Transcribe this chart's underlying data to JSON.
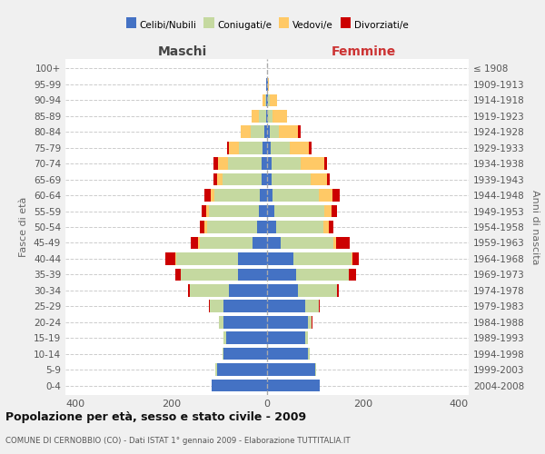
{
  "age_groups": [
    "0-4",
    "5-9",
    "10-14",
    "15-19",
    "20-24",
    "25-29",
    "30-34",
    "35-39",
    "40-44",
    "45-49",
    "50-54",
    "55-59",
    "60-64",
    "65-69",
    "70-74",
    "75-79",
    "80-84",
    "85-89",
    "90-94",
    "95-99",
    "100+"
  ],
  "birth_years": [
    "2004-2008",
    "1999-2003",
    "1994-1998",
    "1989-1993",
    "1984-1988",
    "1979-1983",
    "1974-1978",
    "1969-1973",
    "1964-1968",
    "1959-1963",
    "1954-1958",
    "1949-1953",
    "1944-1948",
    "1939-1943",
    "1934-1938",
    "1929-1933",
    "1924-1928",
    "1919-1923",
    "1914-1918",
    "1909-1913",
    "≤ 1908"
  ],
  "male": {
    "celibi": [
      115,
      105,
      90,
      85,
      90,
      90,
      80,
      60,
      60,
      30,
      20,
      17,
      15,
      12,
      12,
      9,
      5,
      2,
      1,
      1,
      0
    ],
    "coniugati": [
      0,
      2,
      3,
      5,
      10,
      30,
      80,
      120,
      130,
      110,
      105,
      105,
      95,
      80,
      70,
      50,
      30,
      15,
      3,
      0,
      0
    ],
    "vedovi": [
      0,
      0,
      0,
      0,
      0,
      0,
      0,
      0,
      2,
      3,
      5,
      5,
      8,
      12,
      20,
      20,
      20,
      15,
      5,
      1,
      0
    ],
    "divorziati": [
      0,
      0,
      0,
      0,
      1,
      2,
      5,
      12,
      20,
      15,
      10,
      10,
      12,
      8,
      10,
      5,
      0,
      0,
      0,
      0,
      0
    ]
  },
  "female": {
    "nubili": [
      110,
      100,
      85,
      80,
      85,
      80,
      65,
      60,
      55,
      28,
      18,
      15,
      12,
      10,
      10,
      7,
      5,
      2,
      2,
      1,
      0
    ],
    "coniugate": [
      0,
      2,
      3,
      5,
      8,
      28,
      80,
      110,
      120,
      110,
      100,
      105,
      95,
      80,
      60,
      40,
      20,
      10,
      3,
      0,
      0
    ],
    "vedove": [
      0,
      0,
      0,
      0,
      0,
      0,
      0,
      0,
      2,
      5,
      10,
      15,
      30,
      35,
      50,
      40,
      40,
      30,
      15,
      2,
      0
    ],
    "divorziate": [
      0,
      0,
      0,
      0,
      2,
      2,
      5,
      15,
      15,
      30,
      10,
      10,
      15,
      5,
      5,
      5,
      5,
      0,
      0,
      0,
      0
    ]
  },
  "colors": {
    "celibi": "#4472C4",
    "coniugati": "#c5d9a0",
    "vedovi": "#ffc966",
    "divorziati": "#cc0000"
  },
  "title": "Popolazione per età, sesso e stato civile - 2009",
  "subtitle": "COMUNE DI CERNOBBIO (CO) - Dati ISTAT 1° gennaio 2009 - Elaborazione TUTTITALIA.IT",
  "xlabel_left": "Maschi",
  "xlabel_right": "Femmine",
  "ylabel_left": "Fasce di età",
  "ylabel_right": "Anni di nascita",
  "xlim": 420,
  "xticks": [
    -400,
    -200,
    0,
    200,
    400
  ],
  "background_color": "#f0f0f0",
  "bar_bg_color": "#ffffff",
  "legend_labels": [
    "Celibi/Nubili",
    "Coniugati/e",
    "Vedovi/e",
    "Divorziati/e"
  ]
}
